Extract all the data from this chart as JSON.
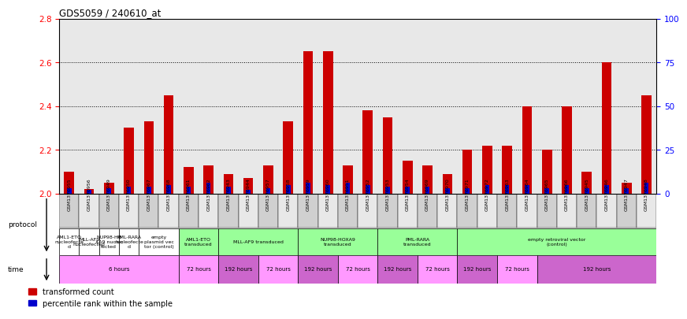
{
  "title": "GDS5059 / 240610_at",
  "samples": [
    "GSM1376955",
    "GSM1376956",
    "GSM1376949",
    "GSM1376950",
    "GSM1376967",
    "GSM1376968",
    "GSM1376961",
    "GSM1376962",
    "GSM1376943",
    "GSM1376944",
    "GSM1376957",
    "GSM1376958",
    "GSM1376959",
    "GSM1376960",
    "GSM1376951",
    "GSM1376952",
    "GSM1376953",
    "GSM1376954",
    "GSM1376969",
    "GSM1376970",
    "GSM1376971",
    "GSM1376972",
    "GSM1376963",
    "GSM1376964",
    "GSM1376965",
    "GSM1376966",
    "GSM1376945",
    "GSM1376946",
    "GSM1376947",
    "GSM1376948"
  ],
  "red_values": [
    2.1,
    2.02,
    2.05,
    2.3,
    2.33,
    2.45,
    2.12,
    2.13,
    2.09,
    2.07,
    2.13,
    2.33,
    2.65,
    2.65,
    2.13,
    2.38,
    2.35,
    2.15,
    2.13,
    2.09,
    2.2,
    2.22,
    2.22,
    2.4,
    2.2,
    2.4,
    2.1,
    2.6,
    2.05,
    2.45
  ],
  "blue_values": [
    3,
    2,
    3,
    4,
    4,
    5,
    4,
    6,
    4,
    2,
    3,
    5,
    6,
    5,
    6,
    5,
    4,
    4,
    4,
    3,
    3,
    5,
    5,
    5,
    3,
    5,
    3,
    5,
    3,
    6
  ],
  "ymin": 2.0,
  "ymax": 2.8,
  "yticks": [
    2.0,
    2.2,
    2.4,
    2.6,
    2.8
  ],
  "right_yticks": [
    0,
    25,
    50,
    75,
    100
  ],
  "bar_color_red": "#cc0000",
  "bar_color_blue": "#0000cc",
  "bg_color": "#e8e8e8",
  "proto_groups": [
    {
      "label": "AML1-ETO\nnucleofecte\nd",
      "start": 0,
      "end": 1,
      "color": "#ffffff"
    },
    {
      "label": "MLL-AF9\nnucleofected",
      "start": 1,
      "end": 2,
      "color": "#ffffff"
    },
    {
      "label": "NUP98-HO\nXA9 nucleo\nfected",
      "start": 2,
      "end": 3,
      "color": "#ffffff"
    },
    {
      "label": "PML-RARA\nnucleofecte\nd",
      "start": 3,
      "end": 4,
      "color": "#ffffff"
    },
    {
      "label": "empty\nplasmid vec\ntor (control)",
      "start": 4,
      "end": 6,
      "color": "#ffffff"
    },
    {
      "label": "AML1-ETO\ntransduced",
      "start": 6,
      "end": 8,
      "color": "#99ff99"
    },
    {
      "label": "MLL-AF9 transduced",
      "start": 8,
      "end": 12,
      "color": "#99ff99"
    },
    {
      "label": "NUP98-HOXA9\ntransduced",
      "start": 12,
      "end": 16,
      "color": "#99ff99"
    },
    {
      "label": "PML-RARA\ntransduced",
      "start": 16,
      "end": 20,
      "color": "#99ff99"
    },
    {
      "label": "empty retroviral vector\n(control)",
      "start": 20,
      "end": 30,
      "color": "#99ff99"
    }
  ],
  "time_groups": [
    {
      "label": "6 hours",
      "start": 0,
      "end": 6,
      "color": "#ff99ff"
    },
    {
      "label": "72 hours",
      "start": 6,
      "end": 8,
      "color": "#ff99ff"
    },
    {
      "label": "192 hours",
      "start": 8,
      "end": 10,
      "color": "#cc66cc"
    },
    {
      "label": "72 hours",
      "start": 10,
      "end": 12,
      "color": "#ff99ff"
    },
    {
      "label": "192 hours",
      "start": 12,
      "end": 14,
      "color": "#cc66cc"
    },
    {
      "label": "72 hours",
      "start": 14,
      "end": 16,
      "color": "#ff99ff"
    },
    {
      "label": "192 hours",
      "start": 16,
      "end": 18,
      "color": "#cc66cc"
    },
    {
      "label": "72 hours",
      "start": 18,
      "end": 20,
      "color": "#ff99ff"
    },
    {
      "label": "192 hours",
      "start": 20,
      "end": 22,
      "color": "#cc66cc"
    },
    {
      "label": "72 hours",
      "start": 22,
      "end": 24,
      "color": "#ff99ff"
    },
    {
      "label": "192 hours",
      "start": 24,
      "end": 30,
      "color": "#cc66cc"
    }
  ]
}
